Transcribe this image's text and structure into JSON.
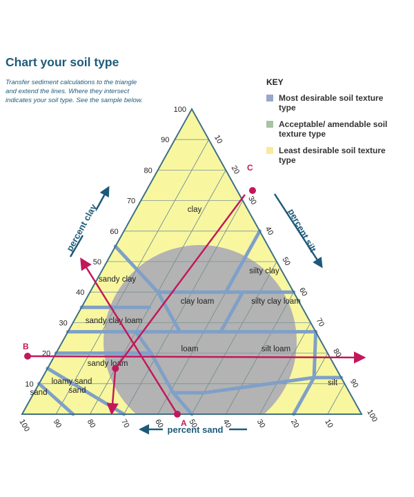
{
  "header": {
    "title": "Chart your soil type",
    "subtitle": "Transfer sediment calculations to the triangle and extend the lines. Where they intersect indicates your soil type. See the sample below."
  },
  "key": {
    "title": "KEY",
    "items": [
      {
        "label": "Most desirable soil texture type",
        "color": "#9aa6cc"
      },
      {
        "label": "Acceptable/ amendable soil texture type",
        "color": "#a9c2a4"
      },
      {
        "label": "Least desirable soil texture type",
        "color": "#fbe99a"
      }
    ]
  },
  "colors": {
    "triangle_fill": "#f8f7a0",
    "outline": "#3e6f86",
    "grid": "#7b9196",
    "boundary": "#7fa0c8",
    "gray_region": "#b3b3b3",
    "sample": "#c2185b",
    "axis_label": "#1d5a7a"
  },
  "axes": {
    "clay_label": "percent clay",
    "silt_label": "percent silt",
    "sand_label": "percent sand",
    "clay_ticks": [
      "10",
      "20",
      "30",
      "40",
      "50",
      "60",
      "70",
      "80",
      "90",
      "100"
    ],
    "silt_ticks": [
      "10",
      "20",
      "30",
      "40",
      "50",
      "60",
      "70",
      "80",
      "90",
      "100"
    ],
    "sand_ticks": [
      "100",
      "90",
      "80",
      "70",
      "60",
      "50",
      "40",
      "30",
      "20",
      "10"
    ]
  },
  "regions": [
    "clay",
    "silty clay",
    "sandy clay",
    "clay loam",
    "silty clay loam",
    "sandy clay loam",
    "loam",
    "silt loam",
    "sandy loam",
    "loamy sand",
    "sand",
    "silt"
  ],
  "sample": {
    "point_a": "A",
    "point_b": "B",
    "point_c": "C",
    "clay_percent": 15,
    "silt_percent": 20,
    "sand_percent": 65
  }
}
